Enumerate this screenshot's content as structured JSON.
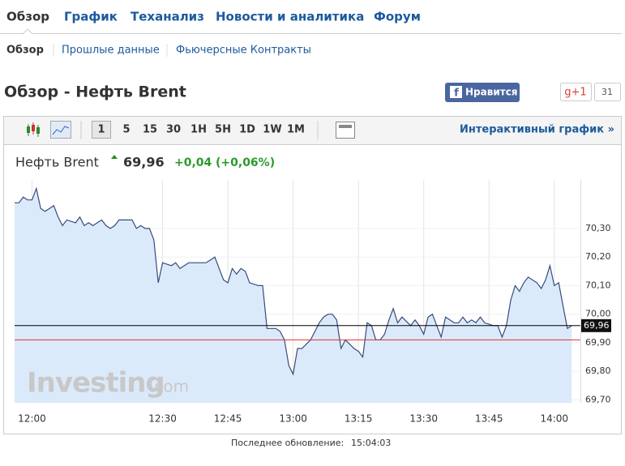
{
  "nav": {
    "tabs": [
      "Обзор",
      "График",
      "Теханализ",
      "Новости и аналитика",
      "Форум"
    ],
    "subtabs": [
      "Обзор",
      "Прошлые данные",
      "Фьючерсные Контракты"
    ]
  },
  "header": {
    "title": "Обзор - Нефть Brent",
    "like": "Нравится",
    "gplus": "g+1",
    "gplus_count": 31
  },
  "toolbar": {
    "periods": [
      "1",
      "5",
      "15",
      "30",
      "1H",
      "5H",
      "1D",
      "1W",
      "1M"
    ],
    "interactive": "Интерактивный график »"
  },
  "quote": {
    "name": "Нефть Brent",
    "price": "69,96",
    "change": "+0,04",
    "change_pct": "(+0,06%)"
  },
  "watermark": {
    "brand": "Investing",
    "suffix": ".com"
  },
  "footer": {
    "label": "Последнее обновление:",
    "time": "15:04:03"
  },
  "chart_data": {
    "type": "area",
    "color": "#3a4a7a",
    "fill": "#dbeafb",
    "x": [
      "11:56",
      "11:57",
      "11:58",
      "11:59",
      "12:00",
      "12:01",
      "12:02",
      "12:03",
      "12:04",
      "12:05",
      "12:06",
      "12:07",
      "12:08",
      "12:10",
      "12:11",
      "12:12",
      "12:13",
      "12:14",
      "12:16",
      "12:17",
      "12:18",
      "12:19",
      "12:20",
      "12:22",
      "12:23",
      "12:24",
      "12:25",
      "12:26",
      "12:27",
      "12:28",
      "12:29",
      "12:30",
      "12:32",
      "12:33",
      "12:34",
      "12:35",
      "12:36",
      "12:38",
      "12:40",
      "12:41",
      "12:42",
      "12:44",
      "12:45",
      "12:46",
      "12:47",
      "12:48",
      "12:49",
      "12:50",
      "12:52",
      "12:53",
      "12:54",
      "12:56",
      "12:57",
      "12:58",
      "12:59",
      "13:00",
      "13:01",
      "13:02",
      "13:04",
      "13:05",
      "13:06",
      "13:07",
      "13:08",
      "13:09",
      "13:10",
      "13:11",
      "13:12",
      "13:14",
      "13:15",
      "13:16",
      "13:17",
      "13:18",
      "13:19",
      "13:20",
      "13:21",
      "13:22",
      "13:23",
      "13:24",
      "13:25",
      "13:27",
      "13:28",
      "13:29",
      "13:30",
      "13:31",
      "13:32",
      "13:33",
      "13:34",
      "13:35",
      "13:37",
      "13:38",
      "13:39",
      "13:40",
      "13:41",
      "13:42",
      "13:43",
      "13:44",
      "13:46",
      "13:47",
      "13:48",
      "13:49",
      "13:50",
      "13:51",
      "13:52",
      "13:53",
      "13:54",
      "13:56",
      "13:57",
      "13:58",
      "13:59",
      "14:00",
      "14:01",
      "14:02",
      "14:03",
      "14:04"
    ],
    "values": [
      70.39,
      70.39,
      70.41,
      70.4,
      70.4,
      70.44,
      70.37,
      70.36,
      70.37,
      70.38,
      70.34,
      70.31,
      70.33,
      70.32,
      70.34,
      70.31,
      70.32,
      70.31,
      70.33,
      70.31,
      70.3,
      70.31,
      70.33,
      70.33,
      70.33,
      70.3,
      70.31,
      70.3,
      70.3,
      70.26,
      70.11,
      70.18,
      70.17,
      70.18,
      70.16,
      70.17,
      70.18,
      70.18,
      70.18,
      70.19,
      70.2,
      70.12,
      70.11,
      70.16,
      70.14,
      70.16,
      70.15,
      70.11,
      70.1,
      70.1,
      69.95,
      69.95,
      69.94,
      69.91,
      69.82,
      69.79,
      69.88,
      69.88,
      69.91,
      69.94,
      69.97,
      69.99,
      70.0,
      70.0,
      69.98,
      69.88,
      69.91,
      69.88,
      69.87,
      69.85,
      69.97,
      69.96,
      69.91,
      69.91,
      69.93,
      69.98,
      70.02,
      69.97,
      69.99,
      69.96,
      69.98,
      69.96,
      69.93,
      69.99,
      70.0,
      69.96,
      69.92,
      69.99,
      69.97,
      69.97,
      69.99,
      69.97,
      69.98,
      69.97,
      69.99,
      69.97,
      69.96,
      69.96,
      69.92,
      69.96,
      70.05,
      70.1,
      70.08,
      70.11,
      70.13,
      70.11,
      70.09,
      70.12,
      70.17,
      70.1,
      70.11,
      70.03,
      69.95,
      69.96
    ],
    "xlim": [
      "11:56",
      "14:06"
    ],
    "xticks": [
      "12:00",
      "12:30",
      "12:45",
      "13:00",
      "13:15",
      "13:30",
      "13:45",
      "14:00"
    ],
    "ylim": [
      69.69,
      70.47
    ],
    "yticks": [
      {
        "value": 69.7,
        "label": "69,70"
      },
      {
        "value": 69.8,
        "label": "69,80"
      },
      {
        "value": 69.9,
        "label": "69,90"
      },
      {
        "value": 70.0,
        "label": "70,00"
      },
      {
        "value": 70.1,
        "label": "70,10"
      },
      {
        "value": 70.2,
        "label": "70,20"
      },
      {
        "value": 70.3,
        "label": "70,30"
      }
    ],
    "last_price": {
      "value": 69.96,
      "label": "69,96"
    },
    "reference_line": 69.91,
    "grid": true
  }
}
